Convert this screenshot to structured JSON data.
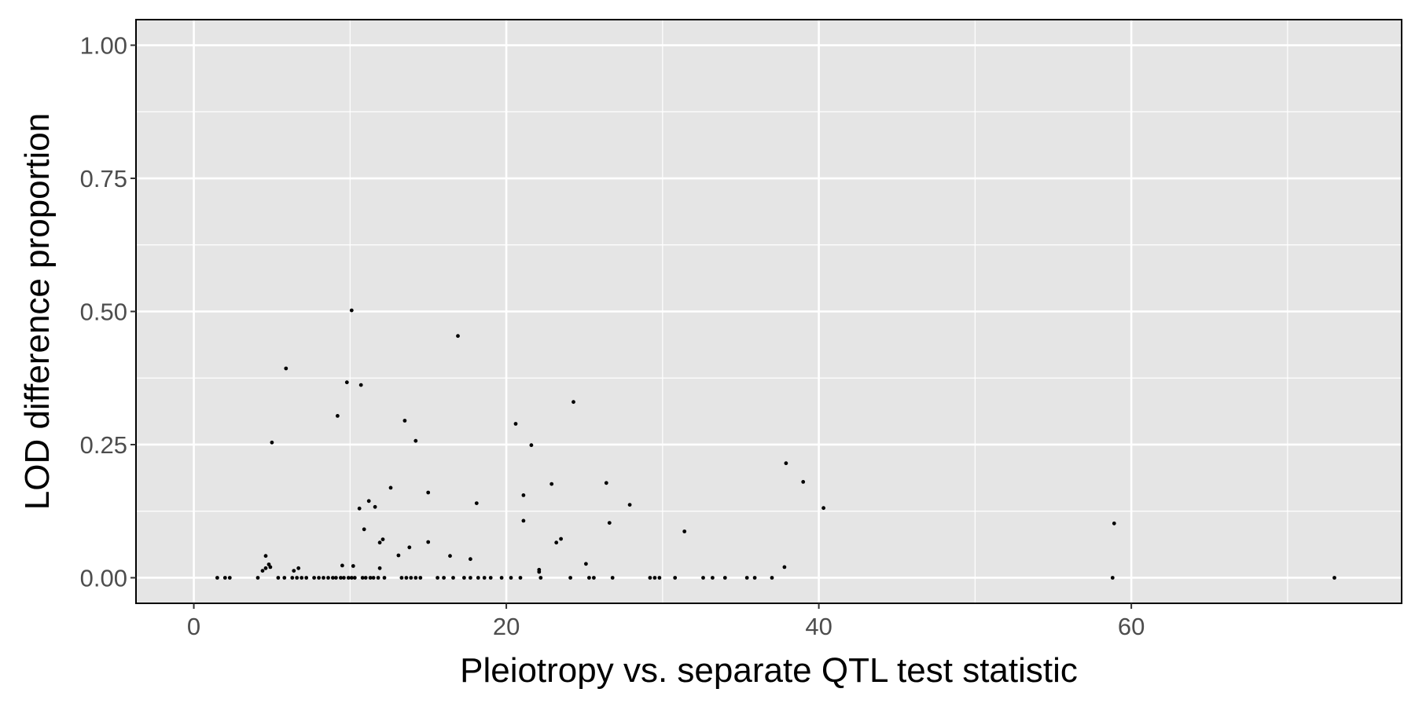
{
  "chart_data": {
    "type": "scatter",
    "xlabel": "Pleiotropy vs. separate QTL test statistic",
    "ylabel": "LOD difference proportion",
    "xlim": [
      -3.7,
      77.3
    ],
    "ylim": [
      -0.048,
      1.048
    ],
    "x_ticks": [
      0,
      20,
      40,
      60
    ],
    "x_tick_labels": [
      "0",
      "20",
      "40",
      "60"
    ],
    "y_ticks": [
      0,
      0.25,
      0.5,
      0.75,
      1.0
    ],
    "y_tick_labels": [
      "0.00",
      "0.25",
      "0.50",
      "0.75",
      "1.00"
    ],
    "grid": true,
    "legend": "none",
    "colors": {
      "panel": "#e5e5e5",
      "grid": "#ffffff",
      "point": "#000000",
      "border": "#000000",
      "tick_text": "#4d4d4d"
    },
    "points": [
      [
        5.9,
        0.393
      ],
      [
        10.1,
        0.502
      ],
      [
        16.9,
        0.454
      ],
      [
        9.8,
        0.367
      ],
      [
        10.7,
        0.362
      ],
      [
        9.2,
        0.304
      ],
      [
        13.5,
        0.295
      ],
      [
        20.6,
        0.289
      ],
      [
        24.3,
        0.33
      ],
      [
        5.0,
        0.254
      ],
      [
        14.2,
        0.257
      ],
      [
        21.6,
        0.249
      ],
      [
        37.9,
        0.215
      ],
      [
        39.0,
        0.18
      ],
      [
        40.3,
        0.131
      ],
      [
        12.6,
        0.169
      ],
      [
        15.0,
        0.16
      ],
      [
        11.2,
        0.144
      ],
      [
        18.1,
        0.14
      ],
      [
        21.1,
        0.155
      ],
      [
        22.9,
        0.176
      ],
      [
        26.4,
        0.178
      ],
      [
        27.9,
        0.137
      ],
      [
        10.6,
        0.13
      ],
      [
        11.6,
        0.133
      ],
      [
        21.1,
        0.107
      ],
      [
        26.6,
        0.103
      ],
      [
        31.4,
        0.087
      ],
      [
        58.9,
        0.102
      ],
      [
        10.9,
        0.091
      ],
      [
        11.9,
        0.066
      ],
      [
        12.1,
        0.072
      ],
      [
        13.1,
        0.042
      ],
      [
        13.8,
        0.057
      ],
      [
        15.0,
        0.067
      ],
      [
        16.4,
        0.041
      ],
      [
        17.7,
        0.035
      ],
      [
        23.2,
        0.066
      ],
      [
        23.5,
        0.073
      ],
      [
        25.1,
        0.026
      ],
      [
        4.6,
        0.041
      ],
      [
        4.8,
        0.025
      ],
      [
        4.9,
        0.02
      ],
      [
        4.6,
        0.018
      ],
      [
        4.4,
        0.013
      ],
      [
        6.4,
        0.013
      ],
      [
        6.7,
        0.018
      ],
      [
        9.5,
        0.023
      ],
      [
        10.2,
        0.022
      ],
      [
        11.9,
        0.018
      ],
      [
        22.1,
        0.015
      ],
      [
        22.1,
        0.011
      ],
      [
        37.8,
        0.02
      ],
      [
        1.5,
        0.0
      ],
      [
        2.0,
        0.0
      ],
      [
        2.3,
        0.0
      ],
      [
        4.1,
        0.0
      ],
      [
        5.4,
        0.0
      ],
      [
        5.8,
        0.0
      ],
      [
        6.3,
        0.0
      ],
      [
        6.6,
        0.0
      ],
      [
        6.9,
        0.0
      ],
      [
        7.2,
        0.0
      ],
      [
        7.7,
        0.0
      ],
      [
        8.0,
        0.0
      ],
      [
        8.3,
        0.0
      ],
      [
        8.6,
        0.0
      ],
      [
        8.9,
        0.0
      ],
      [
        9.1,
        0.0
      ],
      [
        9.4,
        0.0
      ],
      [
        9.6,
        0.0
      ],
      [
        9.9,
        0.0
      ],
      [
        10.1,
        0.0
      ],
      [
        10.3,
        0.0
      ],
      [
        10.8,
        0.0
      ],
      [
        11.0,
        0.0
      ],
      [
        11.3,
        0.0
      ],
      [
        11.5,
        0.0
      ],
      [
        11.8,
        0.0
      ],
      [
        12.2,
        0.0
      ],
      [
        13.3,
        0.0
      ],
      [
        13.6,
        0.0
      ],
      [
        13.9,
        0.0
      ],
      [
        14.2,
        0.0
      ],
      [
        14.5,
        0.0
      ],
      [
        15.6,
        0.0
      ],
      [
        16.0,
        0.0
      ],
      [
        16.6,
        0.0
      ],
      [
        17.3,
        0.0
      ],
      [
        17.7,
        0.0
      ],
      [
        18.2,
        0.0
      ],
      [
        18.6,
        0.0
      ],
      [
        19.0,
        0.0
      ],
      [
        19.7,
        0.0
      ],
      [
        20.3,
        0.0
      ],
      [
        20.9,
        0.0
      ],
      [
        22.2,
        0.0
      ],
      [
        24.1,
        0.0
      ],
      [
        25.3,
        0.0
      ],
      [
        25.6,
        0.0
      ],
      [
        26.8,
        0.0
      ],
      [
        29.2,
        0.0
      ],
      [
        29.5,
        0.0
      ],
      [
        29.8,
        0.0
      ],
      [
        30.8,
        0.0
      ],
      [
        32.6,
        0.0
      ],
      [
        33.2,
        0.0
      ],
      [
        34.0,
        0.0
      ],
      [
        35.4,
        0.0
      ],
      [
        35.9,
        0.0
      ],
      [
        37.0,
        0.0
      ],
      [
        58.8,
        0.0
      ],
      [
        73.0,
        0.0
      ]
    ]
  }
}
